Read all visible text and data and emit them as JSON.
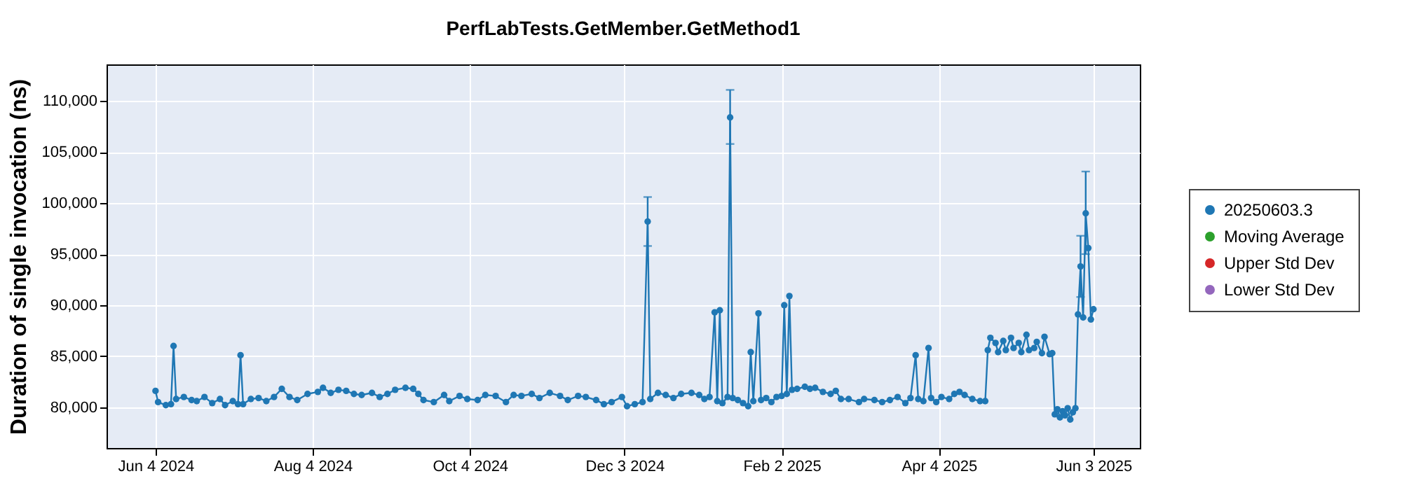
{
  "chart_data": {
    "type": "line",
    "title": "PerfLabTests.GetMember.GetMethod1",
    "ylabel": "Duration of single invocation (ns)",
    "xlim": [
      "2024-05-16",
      "2025-06-21"
    ],
    "ylim": [
      76000,
      113600
    ],
    "xticks": [
      {
        "value": "2024-06-04",
        "label": "Jun 4 2024"
      },
      {
        "value": "2024-08-04",
        "label": "Aug 4 2024"
      },
      {
        "value": "2024-10-04",
        "label": "Oct 4 2024"
      },
      {
        "value": "2024-12-03",
        "label": "Dec 3 2024"
      },
      {
        "value": "2025-02-02",
        "label": "Feb 2 2025"
      },
      {
        "value": "2025-04-04",
        "label": "Apr 4 2025"
      },
      {
        "value": "2025-06-03",
        "label": "Jun 3 2025"
      }
    ],
    "yticks": [
      {
        "value": 80000,
        "label": "80,000"
      },
      {
        "value": 85000,
        "label": "85,000"
      },
      {
        "value": 90000,
        "label": "90,000"
      },
      {
        "value": 95000,
        "label": "95,000"
      },
      {
        "value": 100000,
        "label": "100,000"
      },
      {
        "value": 105000,
        "label": "105,000"
      },
      {
        "value": 110000,
        "label": "110,000"
      }
    ],
    "grid": true,
    "legend": "right",
    "marker": "circle",
    "series": [
      {
        "name": "20250603.3",
        "color": "#1f77b4",
        "x": [
          "2024-06-04",
          "2024-06-05",
          "2024-06-08",
          "2024-06-10",
          "2024-06-11",
          "2024-06-12",
          "2024-06-15",
          "2024-06-18",
          "2024-06-20",
          "2024-06-23",
          "2024-06-26",
          "2024-06-29",
          "2024-07-01",
          "2024-07-04",
          "2024-07-06",
          "2024-07-07",
          "2024-07-08",
          "2024-07-11",
          "2024-07-14",
          "2024-07-17",
          "2024-07-20",
          "2024-07-23",
          "2024-07-26",
          "2024-07-29",
          "2024-08-02",
          "2024-08-06",
          "2024-08-08",
          "2024-08-11",
          "2024-08-14",
          "2024-08-17",
          "2024-08-20",
          "2024-08-23",
          "2024-08-27",
          "2024-08-30",
          "2024-09-02",
          "2024-09-05",
          "2024-09-09",
          "2024-09-12",
          "2024-09-14",
          "2024-09-16",
          "2024-09-20",
          "2024-09-24",
          "2024-09-26",
          "2024-09-30",
          "2024-10-03",
          "2024-10-07",
          "2024-10-10",
          "2024-10-14",
          "2024-10-18",
          "2024-10-21",
          "2024-10-24",
          "2024-10-28",
          "2024-10-31",
          "2024-11-04",
          "2024-11-08",
          "2024-11-11",
          "2024-11-15",
          "2024-11-18",
          "2024-11-22",
          "2024-11-25",
          "2024-11-28",
          "2024-12-02",
          "2024-12-04",
          "2024-12-07",
          "2024-12-10",
          "2024-12-12",
          "2024-12-13",
          "2024-12-16",
          "2024-12-19",
          "2024-12-22",
          "2024-12-25",
          "2024-12-29",
          "2025-01-01",
          "2025-01-03",
          "2025-01-05",
          "2025-01-07",
          "2025-01-08",
          "2025-01-09",
          "2025-01-10",
          "2025-01-12",
          "2025-01-13",
          "2025-01-14",
          "2025-01-16",
          "2025-01-18",
          "2025-01-20",
          "2025-01-21",
          "2025-01-22",
          "2025-01-24",
          "2025-01-25",
          "2025-01-27",
          "2025-01-29",
          "2025-01-31",
          "2025-02-02",
          "2025-02-03",
          "2025-02-04",
          "2025-02-05",
          "2025-02-06",
          "2025-02-08",
          "2025-02-11",
          "2025-02-13",
          "2025-02-15",
          "2025-02-18",
          "2025-02-21",
          "2025-02-23",
          "2025-02-25",
          "2025-02-28",
          "2025-03-04",
          "2025-03-06",
          "2025-03-10",
          "2025-03-13",
          "2025-03-16",
          "2025-03-19",
          "2025-03-22",
          "2025-03-24",
          "2025-03-26",
          "2025-03-27",
          "2025-03-29",
          "2025-03-31",
          "2025-04-01",
          "2025-04-03",
          "2025-04-05",
          "2025-04-08",
          "2025-04-10",
          "2025-04-12",
          "2025-04-14",
          "2025-04-17",
          "2025-04-20",
          "2025-04-22",
          "2025-04-23",
          "2025-04-24",
          "2025-04-26",
          "2025-04-27",
          "2025-04-29",
          "2025-04-30",
          "2025-05-02",
          "2025-05-03",
          "2025-05-05",
          "2025-05-06",
          "2025-05-08",
          "2025-05-09",
          "2025-05-11",
          "2025-05-12",
          "2025-05-14",
          "2025-05-15",
          "2025-05-17",
          "2025-05-18",
          "2025-05-19",
          "2025-05-20",
          "2025-05-21",
          "2025-05-22",
          "2025-05-23",
          "2025-05-24",
          "2025-05-25",
          "2025-05-26",
          "2025-05-27",
          "2025-05-28",
          "2025-05-29",
          "2025-05-30",
          "2025-05-31",
          "2025-06-01",
          "2025-06-02",
          "2025-06-03"
        ],
        "values": [
          81600,
          80500,
          80200,
          80300,
          86000,
          80800,
          81000,
          80700,
          80600,
          81000,
          80400,
          80800,
          80200,
          80600,
          80300,
          85100,
          80300,
          80800,
          80900,
          80600,
          81000,
          81800,
          81000,
          80700,
          81300,
          81500,
          81900,
          81400,
          81700,
          81600,
          81300,
          81200,
          81400,
          81000,
          81300,
          81700,
          81900,
          81800,
          81300,
          80700,
          80500,
          81200,
          80600,
          81100,
          80800,
          80700,
          81200,
          81100,
          80500,
          81200,
          81100,
          81300,
          80900,
          81400,
          81100,
          80700,
          81100,
          81000,
          80700,
          80300,
          80500,
          81000,
          80100,
          80300,
          80500,
          98200,
          80800,
          81400,
          81200,
          80900,
          81300,
          81400,
          81200,
          80800,
          81000,
          89300,
          80600,
          89500,
          80400,
          81000,
          108400,
          80900,
          80700,
          80400,
          80100,
          85400,
          80600,
          89200,
          80700,
          80900,
          80500,
          81000,
          81100,
          90000,
          81300,
          90900,
          81700,
          81800,
          82000,
          81800,
          81900,
          81500,
          81300,
          81600,
          80800,
          80800,
          80500,
          80800,
          80700,
          80500,
          80700,
          81000,
          80400,
          80900,
          85100,
          80800,
          80600,
          85800,
          80900,
          80500,
          81000,
          80800,
          81300,
          81500,
          81200,
          80800,
          80600,
          80600,
          85600,
          86800,
          86300,
          85400,
          86500,
          85600,
          86800,
          85800,
          86300,
          85400,
          87100,
          85600,
          85800,
          86400,
          85300,
          86900,
          85200,
          85300,
          79300,
          79800,
          79000,
          79600,
          79200,
          79900,
          78800,
          79500,
          79900,
          89100,
          93800,
          88800,
          99000,
          95600,
          88600,
          89600
        ],
        "errors": [
          null,
          null,
          null,
          null,
          null,
          null,
          null,
          null,
          null,
          null,
          null,
          null,
          null,
          null,
          null,
          null,
          null,
          null,
          null,
          null,
          null,
          null,
          null,
          null,
          null,
          null,
          null,
          null,
          null,
          null,
          null,
          null,
          null,
          null,
          null,
          null,
          null,
          null,
          null,
          null,
          null,
          null,
          null,
          null,
          null,
          null,
          null,
          null,
          null,
          null,
          null,
          null,
          null,
          null,
          null,
          null,
          null,
          null,
          null,
          null,
          null,
          null,
          null,
          null,
          null,
          [
            95800,
            100600
          ],
          null,
          null,
          null,
          null,
          null,
          null,
          null,
          null,
          null,
          null,
          null,
          null,
          null,
          null,
          [
            105800,
            111100
          ],
          null,
          null,
          null,
          null,
          null,
          null,
          null,
          null,
          null,
          null,
          null,
          null,
          null,
          null,
          null,
          null,
          null,
          null,
          null,
          null,
          null,
          null,
          null,
          null,
          null,
          null,
          null,
          null,
          null,
          null,
          null,
          null,
          null,
          null,
          null,
          null,
          null,
          null,
          null,
          null,
          null,
          null,
          null,
          null,
          null,
          null,
          null,
          null,
          null,
          null,
          null,
          null,
          null,
          null,
          null,
          null,
          null,
          null,
          null,
          null,
          null,
          null,
          null,
          null,
          null,
          null,
          null,
          null,
          null,
          null,
          null,
          null,
          null,
          null,
          null,
          [
            90800,
            96800
          ],
          null,
          [
            95000,
            103100
          ],
          null,
          null,
          null
        ]
      },
      {
        "name": "Moving Average",
        "color": "#2ca02c"
      },
      {
        "name": "Upper Std Dev",
        "color": "#d62728"
      },
      {
        "name": "Lower Std Dev",
        "color": "#9467bd"
      }
    ]
  }
}
